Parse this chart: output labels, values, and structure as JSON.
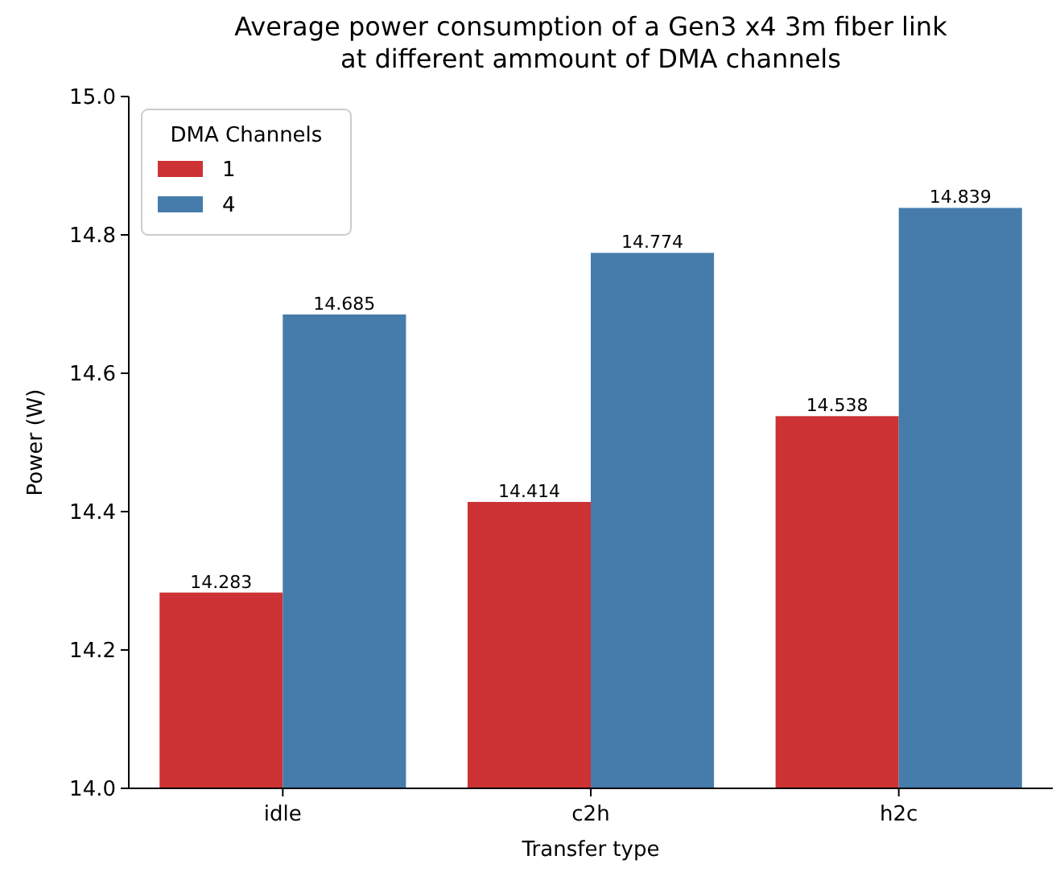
{
  "chart_data": {
    "type": "bar",
    "title": "Average power consumption of a Gen3 x4 3m fiber link\nat different ammount of DMA channels",
    "xlabel": "Transfer type",
    "ylabel": "Power (W)",
    "legend_title": "DMA Channels",
    "legend": "top left",
    "categories": [
      "idle",
      "c2h",
      "h2c"
    ],
    "series": [
      {
        "name": "1",
        "color": "#cd3234",
        "values": [
          14.283,
          14.414,
          14.538
        ]
      },
      {
        "name": "4",
        "color": "#457cab",
        "values": [
          14.685,
          14.774,
          14.839
        ]
      }
    ],
    "ylim": [
      14.0,
      15.0
    ],
    "yticks": [
      {
        "value": 14.0,
        "label": "14.0"
      },
      {
        "value": 14.2,
        "label": "14.2"
      },
      {
        "value": 14.4,
        "label": "14.4"
      },
      {
        "value": 14.6,
        "label": "14.6"
      },
      {
        "value": 14.8,
        "label": "14.8"
      },
      {
        "value": 15.0,
        "label": "15.0"
      }
    ],
    "data_labels": true
  }
}
